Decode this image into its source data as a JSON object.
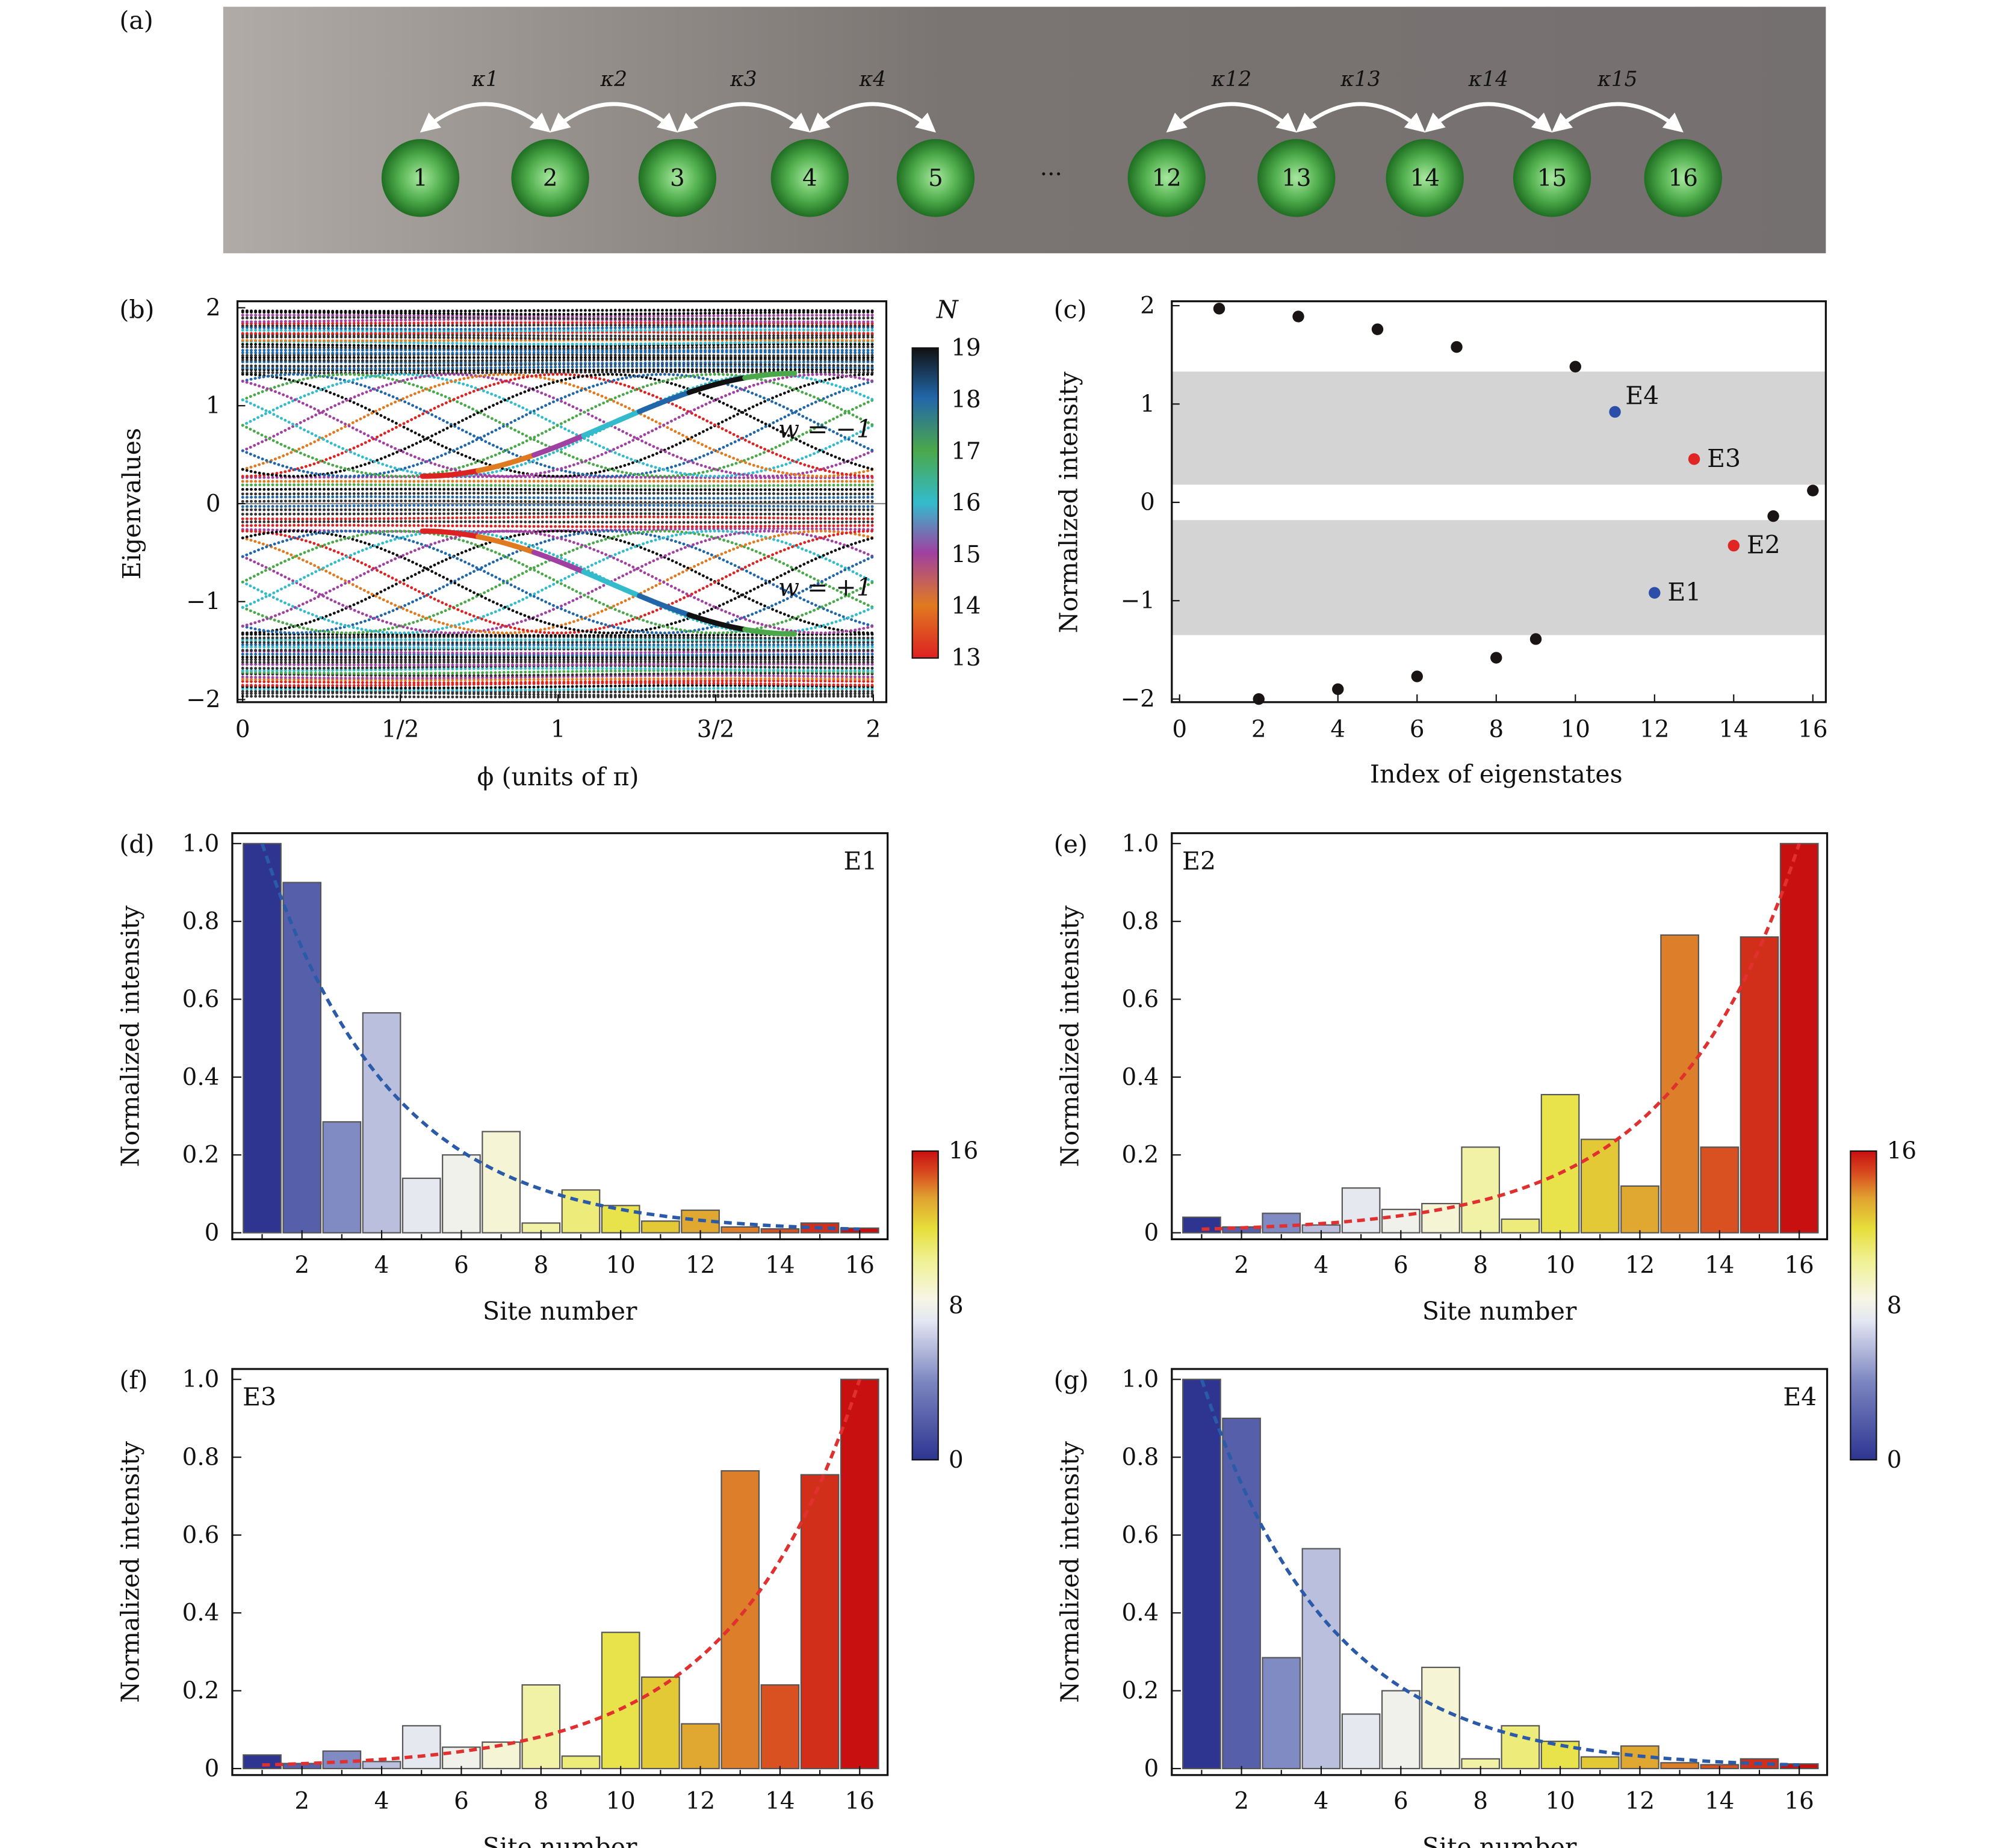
{
  "panel_labels": [
    "(a)",
    "(b)",
    "(c)",
    "(d)",
    "(e)",
    "(f)",
    "(g)"
  ],
  "lattice": {
    "nodes": [
      "1",
      "2",
      "3",
      "4",
      "5",
      "12",
      "13",
      "14",
      "15",
      "16"
    ],
    "ellipsis": "···",
    "couplings": [
      "κ1",
      "κ2",
      "κ3",
      "κ4",
      "κ12",
      "κ13",
      "κ14",
      "κ15"
    ],
    "node_color": "#3e9a3e",
    "background_colors": [
      "#b0aba6",
      "#777170"
    ]
  },
  "chart_data": [
    {
      "id": "b",
      "type": "line",
      "xlabel": "ϕ (units of π)",
      "ylabel": "Eigenvalues",
      "xlim": [
        0,
        2
      ],
      "ylim": [
        -2,
        2
      ],
      "xticks": [
        "0",
        "1/2",
        "1",
        "3/2",
        "2"
      ],
      "yticks": [
        "2",
        "1",
        "0",
        "−1",
        "−2"
      ],
      "annotations": [
        "w = −1",
        "w = +1"
      ],
      "colorbar": {
        "title": "N",
        "ticks": [
          "19",
          "18",
          "17",
          "16",
          "15",
          "14",
          "13"
        ],
        "colors": [
          "#111111",
          "#2266aa",
          "#4aa84a",
          "#33bbcc",
          "#a040a0",
          "#e07a20",
          "#dd2222"
        ]
      }
    },
    {
      "id": "c",
      "type": "scatter",
      "xlabel": "Index of eigenstates",
      "ylabel": "Normalized intensity",
      "xlim": [
        0,
        16
      ],
      "ylim": [
        -2,
        2
      ],
      "xticks": [
        "0",
        "2",
        "4",
        "6",
        "8",
        "10",
        "12",
        "14",
        "16"
      ],
      "yticks": [
        "2",
        "1",
        "0",
        "−1",
        "−2"
      ],
      "bands": [
        [
          0.18,
          1.33
        ],
        [
          -1.35,
          -0.18
        ]
      ],
      "x": [
        1,
        2,
        3,
        4,
        5,
        6,
        7,
        8,
        9,
        10,
        11,
        12,
        13,
        14,
        15,
        16
      ],
      "y": [
        1.97,
        -2.0,
        1.89,
        -1.9,
        1.76,
        -1.77,
        1.58,
        -1.58,
        -1.39,
        1.38,
        0.92,
        -0.92,
        0.44,
        -0.44,
        -0.14,
        0.12
      ],
      "highlights": [
        {
          "label": "E4",
          "x": 11,
          "color": "#2b4fa8"
        },
        {
          "label": "E3",
          "x": 13,
          "color": "#e02525"
        },
        {
          "label": "E2",
          "x": 14,
          "color": "#e02525"
        },
        {
          "label": "E1",
          "x": 12,
          "color": "#2b4fa8"
        }
      ]
    },
    {
      "id": "d",
      "type": "bar",
      "label": "E1",
      "xlabel": "Site number",
      "ylabel": "Normalized intensity",
      "xticks": [
        "2",
        "4",
        "6",
        "8",
        "10",
        "12",
        "14",
        "16"
      ],
      "yticks": [
        "1.0",
        "0.8",
        "0.6",
        "0.4",
        "0.2",
        "0"
      ],
      "ylim": [
        0,
        1
      ],
      "values": [
        1.0,
        0.9,
        0.285,
        0.565,
        0.14,
        0.2,
        0.26,
        0.025,
        0.11,
        0.07,
        0.03,
        0.058,
        0.015,
        0.01,
        0.025,
        0.012
      ],
      "fit": "decay-left",
      "fit_color": "#2b5aa8"
    },
    {
      "id": "e",
      "type": "bar",
      "label": "E2",
      "xlabel": "Site number",
      "ylabel": "Normalized intensity",
      "xticks": [
        "2",
        "4",
        "6",
        "8",
        "10",
        "12",
        "14",
        "16"
      ],
      "yticks": [
        "1.0",
        "0.8",
        "0.6",
        "0.4",
        "0.2",
        "0"
      ],
      "ylim": [
        0,
        1
      ],
      "values": [
        0.04,
        0.015,
        0.05,
        0.02,
        0.115,
        0.06,
        0.075,
        0.22,
        0.035,
        0.355,
        0.24,
        0.12,
        0.765,
        0.22,
        0.76,
        1.0
      ],
      "fit": "decay-right",
      "fit_color": "#e03030"
    },
    {
      "id": "f",
      "type": "bar",
      "label": "E3",
      "xlabel": "Site number",
      "ylabel": "Normalized intensity",
      "xticks": [
        "2",
        "4",
        "6",
        "8",
        "10",
        "12",
        "14",
        "16"
      ],
      "yticks": [
        "1.0",
        "0.8",
        "0.6",
        "0.4",
        "0.2",
        "0"
      ],
      "ylim": [
        0,
        1
      ],
      "values": [
        0.035,
        0.013,
        0.045,
        0.018,
        0.11,
        0.055,
        0.068,
        0.215,
        0.032,
        0.35,
        0.235,
        0.115,
        0.765,
        0.215,
        0.755,
        1.0
      ],
      "fit": "decay-right",
      "fit_color": "#e03030"
    },
    {
      "id": "g",
      "type": "bar",
      "label": "E4",
      "xlabel": "Site number",
      "ylabel": "Normalized intensity",
      "xticks": [
        "2",
        "4",
        "6",
        "8",
        "10",
        "12",
        "14",
        "16"
      ],
      "yticks": [
        "1.0",
        "0.8",
        "0.6",
        "0.4",
        "0.2",
        "0"
      ],
      "ylim": [
        0,
        1
      ],
      "values": [
        1.0,
        0.9,
        0.285,
        0.565,
        0.14,
        0.2,
        0.26,
        0.025,
        0.11,
        0.07,
        0.03,
        0.058,
        0.015,
        0.01,
        0.025,
        0.012
      ],
      "fit": "decay-left",
      "fit_color": "#2b5aa8"
    }
  ],
  "site_colorbar": {
    "ticks": [
      "16",
      "8",
      "0"
    ],
    "colors": [
      "#2d3590",
      "#7a85c0",
      "#e4e6f2",
      "#f6f6e6",
      "#f0f090",
      "#e6de3a",
      "#e0a030",
      "#d84a20",
      "#c81010"
    ]
  }
}
